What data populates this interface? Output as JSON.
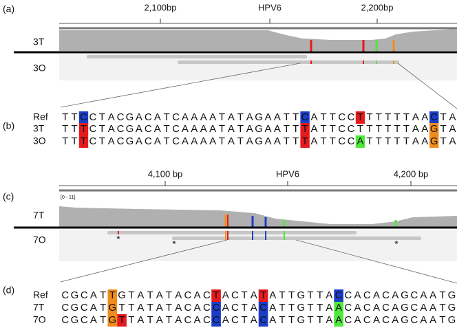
{
  "panels": [
    {
      "label": "(a)",
      "ruler": {
        "ticks": [
          "2,100bp",
          "HPV6",
          "2,200bp"
        ]
      },
      "tracks": [
        "3T",
        "3O"
      ]
    },
    {
      "label": "(b)",
      "rows": [
        {
          "label": "Ref",
          "segments": [
            {
              "text": "TT"
            },
            {
              "text": "C",
              "color": "#1a3dc8"
            },
            {
              "text": "CTACGACATCAAAATATAGAATT"
            },
            {
              "text": "C",
              "color": "#1a3dc8"
            },
            {
              "text": "ATTCC"
            },
            {
              "text": "T",
              "color": "#e41a1c"
            },
            {
              "text": "TTTTTAA"
            },
            {
              "text": "C",
              "color": "#1a3dc8"
            },
            {
              "text": "TA"
            }
          ]
        },
        {
          "label": "3T",
          "segments": [
            {
              "text": "TT"
            },
            {
              "text": "T",
              "color": "#e41a1c"
            },
            {
              "text": "CTACGACATCAAAATATAGAATT"
            },
            {
              "text": "T",
              "color": "#e41a1c"
            },
            {
              "text": "ATTCCTTTTTTAA"
            },
            {
              "text": "G",
              "color": "#f08c1c"
            },
            {
              "text": "TA"
            }
          ]
        },
        {
          "label": "3O",
          "segments": [
            {
              "text": "TT"
            },
            {
              "text": "T",
              "color": "#e41a1c"
            },
            {
              "text": "CTACGACATCAAAATATAGAATT"
            },
            {
              "text": "T",
              "color": "#e41a1c"
            },
            {
              "text": "ATTCC"
            },
            {
              "text": "A",
              "color": "#4fe83a"
            },
            {
              "text": "TTTTTAA"
            },
            {
              "text": "G",
              "color": "#f08c1c"
            },
            {
              "text": "TA"
            }
          ]
        }
      ]
    },
    {
      "label": "(c)",
      "ruler": {
        "ticks": [
          "4,100 bp",
          "HPV6",
          "4,200 bp"
        ]
      },
      "range": "[0 - 11]",
      "tracks": [
        "7T",
        "7O"
      ],
      "marks": [
        "*",
        "*",
        "*"
      ]
    },
    {
      "label": "(d)",
      "rows": [
        {
          "label": "Ref",
          "segments": [
            {
              "text": "CGCAT"
            },
            {
              "text": "T",
              "color": "#f08c1c"
            },
            {
              "text": "GTATATACAC"
            },
            {
              "text": "T",
              "color": "#e41a1c"
            },
            {
              "text": "ACTA"
            },
            {
              "text": "T",
              "color": "#e41a1c"
            },
            {
              "text": "ATTGTTA"
            },
            {
              "text": "C",
              "color": "#1a3dc8"
            },
            {
              "text": "CACACAGCAATG"
            }
          ]
        },
        {
          "label": "7T",
          "segments": [
            {
              "text": "CGCAT"
            },
            {
              "text": "G",
              "color": "#f08c1c"
            },
            {
              "text": "TTATATACAC"
            },
            {
              "text": "C",
              "color": "#1a3dc8"
            },
            {
              "text": "ACTA"
            },
            {
              "text": "C",
              "color": "#1a3dc8"
            },
            {
              "text": "ATTGTTA"
            },
            {
              "text": "A",
              "color": "#4fe83a"
            },
            {
              "text": "CACACAGCAATG"
            }
          ]
        },
        {
          "label": "7O",
          "segments": [
            {
              "text": "CGCAT"
            },
            {
              "text": "G",
              "color": "#f08c1c"
            },
            {
              "text": "T",
              "color": "#e41a1c"
            },
            {
              "text": "TATATACAC"
            },
            {
              "text": "C",
              "color": "#1a3dc8"
            },
            {
              "text": "ACTA"
            },
            {
              "text": "C",
              "color": "#1a3dc8"
            },
            {
              "text": "ATTGTTA"
            },
            {
              "text": "A",
              "color": "#4fe83a"
            },
            {
              "text": "CACACAGCAATG"
            }
          ]
        }
      ]
    }
  ]
}
